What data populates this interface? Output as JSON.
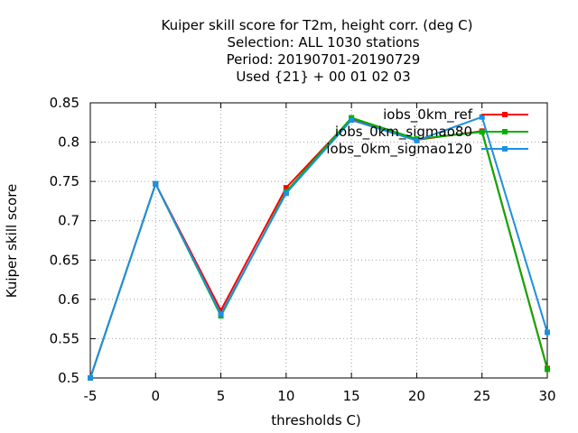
{
  "chart_data": {
    "type": "line",
    "title_lines": [
      "Kuiper skill score  for T2m, height corr. (deg C)",
      "Selection: ALL   1030 stations",
      "Period: 20190701-20190729",
      "Used {21} + 00 01 02 03"
    ],
    "xlabel": "thresholds C)",
    "ylabel": "Kuiper skill score",
    "xlim": [
      -5,
      30
    ],
    "ylim": [
      0.5,
      0.85
    ],
    "x_ticks": [
      -5,
      0,
      5,
      10,
      15,
      20,
      25,
      30
    ],
    "y_ticks": [
      0.5,
      0.55,
      0.6,
      0.65,
      0.7,
      0.75,
      0.8,
      0.85
    ],
    "grid": true,
    "legend_position": "top-right",
    "x": [
      -5,
      0,
      5,
      10,
      15,
      20,
      25,
      30
    ],
    "series": [
      {
        "name": "iobs_0km_ref",
        "color": "#ff0000",
        "values": [
          0.5,
          0.747,
          0.586,
          0.742,
          0.83,
          0.803,
          0.814,
          0.512
        ]
      },
      {
        "name": "iobs_0km_sigmao80",
        "color": "#00b000",
        "values": [
          0.5,
          0.747,
          0.579,
          0.737,
          0.831,
          0.804,
          0.813,
          0.511
        ]
      },
      {
        "name": "iobs_0km_sigmao120",
        "color": "#1f8fe0",
        "values": [
          0.5,
          0.747,
          0.581,
          0.735,
          0.828,
          0.802,
          0.832,
          0.558
        ]
      }
    ]
  }
}
